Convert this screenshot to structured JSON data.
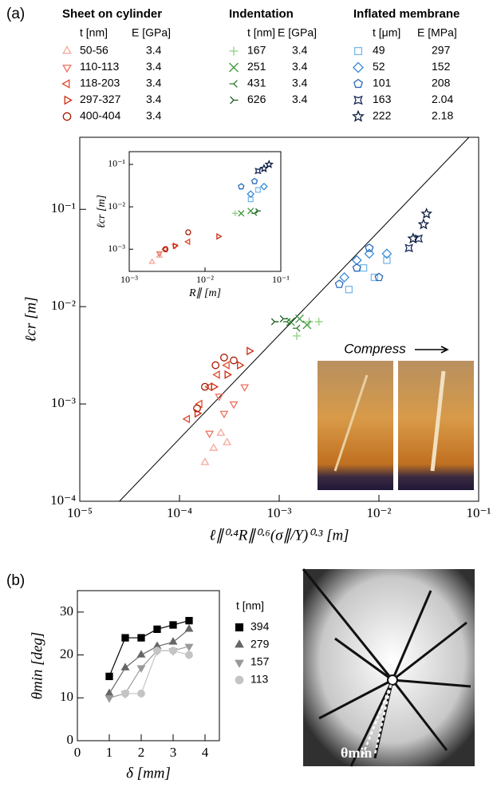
{
  "panel_labels": [
    "(a)",
    "(b)"
  ],
  "photo_a": {
    "caption": "Compress"
  },
  "photo_b": {
    "label": "θmin"
  },
  "chart_data": [
    {
      "type": "scatter",
      "log": true,
      "xlabel": "ℓ∥⁰·⁴R∥⁰·⁶(σ∥/Y)⁰·³ [m]",
      "ylabel": "ℓcr [m]",
      "xlim": [
        1e-05,
        0.1
      ],
      "ylim": [
        0.0001,
        0.55
      ],
      "xticks": [
        {
          "value": 1e-05,
          "label": "10⁻⁵"
        },
        {
          "value": 0.0001,
          "label": "10⁻⁴"
        },
        {
          "value": 0.001,
          "label": "10⁻³"
        },
        {
          "value": 0.01,
          "label": "10⁻²"
        },
        {
          "value": 0.1,
          "label": "10⁻¹"
        }
      ],
      "yticks": [
        {
          "value": 0.0001,
          "label": "10⁻⁴"
        },
        {
          "value": 0.001,
          "label": "10⁻³"
        },
        {
          "value": 0.01,
          "label": "10⁻²"
        },
        {
          "value": 0.1,
          "label": "10⁻¹"
        }
      ],
      "fit_line": {
        "x": [
          2.5e-05,
          0.08
        ],
        "y": [
          0.0001,
          0.55
        ]
      },
      "groups": [
        {
          "title": "Sheet on cylinder",
          "columns": [
            "t [nm]",
            "E [GPa]"
          ],
          "series": [
            {
              "name": "50-56",
              "E": 3.4,
              "color": "#f4a89a",
              "marker": "triangle-up",
              "x": [
                0.00018,
                0.00022,
                0.00026,
                0.0003
              ],
              "values": [
                0.00025,
                0.00035,
                0.0005,
                0.0004
              ]
            },
            {
              "name": "110-113",
              "E": 3.4,
              "color": "#ee7060",
              "marker": "triangle-down",
              "x": [
                0.0002,
                0.00028,
                0.00035,
                0.00045,
                0.00025
              ],
              "values": [
                0.0005,
                0.0008,
                0.001,
                0.0015,
                0.0012
              ]
            },
            {
              "name": "118-203",
              "E": 3.4,
              "color": "#e04a2a",
              "marker": "triangle-left",
              "x": [
                0.00012,
                0.00016,
                0.0002,
                0.00024,
                0.0003
              ],
              "values": [
                0.0007,
                0.001,
                0.0015,
                0.002,
                0.0025
              ]
            },
            {
              "name": "297-327",
              "E": 3.4,
              "color": "#cc2a10",
              "marker": "triangle-right",
              "x": [
                0.00015,
                0.00022,
                0.0003,
                0.0004,
                0.0005
              ],
              "values": [
                0.0008,
                0.0015,
                0.002,
                0.0025,
                0.0035
              ]
            },
            {
              "name": "400-404",
              "E": 3.4,
              "color": "#a81800",
              "marker": "circle",
              "x": [
                0.00018,
                0.00023,
                0.00028,
                0.00035,
                0.00015
              ],
              "values": [
                0.0015,
                0.0025,
                0.003,
                0.0028,
                0.0009
              ]
            }
          ]
        },
        {
          "title": "Indentation",
          "columns": [
            "t [nm]",
            "E [GPa]"
          ],
          "series": [
            {
              "name": "167",
              "E": 3.4,
              "color": "#8fd080",
              "marker": "plus",
              "x": [
                0.0015,
                0.002,
                0.0025
              ],
              "values": [
                0.005,
                0.007,
                0.007
              ]
            },
            {
              "name": "251",
              "E": 3.4,
              "color": "#3a9a3a",
              "marker": "cross",
              "x": [
                0.0013,
                0.0016,
                0.0019
              ],
              "values": [
                0.007,
                0.0075,
                0.0065
              ]
            },
            {
              "name": "431",
              "E": 3.4,
              "color": "#2a7a2a",
              "marker": "tri-right",
              "x": [
                0.0012,
                0.0015
              ],
              "values": [
                0.007,
                0.006
              ]
            },
            {
              "name": "626",
              "E": 3.4,
              "color": "#1a5a1a",
              "marker": "tri-left",
              "x": [
                0.0009,
                0.0011
              ],
              "values": [
                0.007,
                0.0075
              ]
            }
          ]
        },
        {
          "title": "Inflated membrane",
          "columns": [
            "t [μm]",
            "E [MPa]"
          ],
          "series": [
            {
              "name": "49",
              "E": 297,
              "color": "#7ab8e8",
              "marker": "square",
              "x": [
                0.005,
                0.007,
                0.009,
                0.012
              ],
              "values": [
                0.015,
                0.025,
                0.02,
                0.03
              ]
            },
            {
              "name": "52",
              "E": 152,
              "color": "#3a8ad8",
              "marker": "diamond",
              "x": [
                0.0045,
                0.006,
                0.008,
                0.012
              ],
              "values": [
                0.02,
                0.03,
                0.035,
                0.035
              ]
            },
            {
              "name": "101",
              "E": 208,
              "color": "#2a6ab8",
              "marker": "pentagon",
              "x": [
                0.004,
                0.006,
                0.008,
                0.01
              ],
              "values": [
                0.017,
                0.025,
                0.04,
                0.02
              ]
            },
            {
              "name": "163",
              "E": 2.04,
              "color": "#1a2a5a",
              "marker": "star4",
              "x": [
                0.02,
                0.025
              ],
              "values": [
                0.04,
                0.05
              ]
            },
            {
              "name": "222",
              "E": 2.18,
              "color": "#0a1a40",
              "marker": "star5",
              "x": [
                0.022,
                0.028,
                0.03
              ],
              "values": [
                0.05,
                0.07,
                0.09
              ]
            }
          ]
        }
      ]
    },
    {
      "type": "scatter",
      "log": true,
      "xlabel": "R∥ [m]",
      "ylabel": "ℓcr [m]",
      "xlim": [
        0.001,
        0.1
      ],
      "ylim": [
        0.0003,
        0.2
      ],
      "xticks": [
        {
          "value": 0.001,
          "label": "10⁻³"
        },
        {
          "value": 0.01,
          "label": "10⁻²"
        },
        {
          "value": 0.1,
          "label": "10⁻¹"
        }
      ],
      "yticks": [
        {
          "value": 0.001,
          "label": "10⁻³"
        },
        {
          "value": 0.01,
          "label": "10⁻²"
        },
        {
          "value": 0.1,
          "label": "10⁻¹"
        }
      ],
      "series": [
        {
          "color": "#f4a89a",
          "marker": "triangle-up",
          "x": [
            0.002,
            0.0025
          ],
          "values": [
            0.0005,
            0.0007
          ]
        },
        {
          "color": "#ee7060",
          "marker": "triangle-down",
          "x": [
            0.0025,
            0.004
          ],
          "values": [
            0.0008,
            0.0012
          ]
        },
        {
          "color": "#e04a2a",
          "marker": "triangle-left",
          "x": [
            0.003,
            0.006
          ],
          "values": [
            0.001,
            0.0015
          ]
        },
        {
          "color": "#cc2a10",
          "marker": "triangle-right",
          "x": [
            0.004,
            0.015
          ],
          "values": [
            0.0012,
            0.002
          ]
        },
        {
          "color": "#a81800",
          "marker": "circle",
          "x": [
            0.003,
            0.006
          ],
          "values": [
            0.001,
            0.0025
          ]
        },
        {
          "color": "#8fd080",
          "marker": "plus",
          "x": [
            0.025
          ],
          "values": [
            0.007
          ]
        },
        {
          "color": "#3a9a3a",
          "marker": "cross",
          "x": [
            0.03,
            0.04
          ],
          "values": [
            0.007,
            0.008
          ]
        },
        {
          "color": "#2a7a2a",
          "marker": "tri-right",
          "x": [
            0.045
          ],
          "values": [
            0.007
          ]
        },
        {
          "color": "#1a5a1a",
          "marker": "tri-left",
          "x": [
            0.05
          ],
          "values": [
            0.008
          ]
        },
        {
          "color": "#7ab8e8",
          "marker": "square",
          "x": [
            0.04,
            0.05
          ],
          "values": [
            0.015,
            0.025
          ]
        },
        {
          "color": "#3a8ad8",
          "marker": "diamond",
          "x": [
            0.04,
            0.06
          ],
          "values": [
            0.02,
            0.03
          ]
        },
        {
          "color": "#2a6ab8",
          "marker": "pentagon",
          "x": [
            0.03,
            0.045
          ],
          "values": [
            0.03,
            0.04
          ]
        },
        {
          "color": "#1a2a5a",
          "marker": "star4",
          "x": [
            0.05
          ],
          "values": [
            0.07
          ]
        },
        {
          "color": "#0a1a40",
          "marker": "star5",
          "x": [
            0.06,
            0.07
          ],
          "values": [
            0.08,
            0.1
          ]
        }
      ]
    },
    {
      "type": "line",
      "filled": true,
      "xlabel": "δ [mm]",
      "ylabel": "θmin [deg]",
      "xlim": [
        0,
        4.45
      ],
      "ylim": [
        0,
        35
      ],
      "xticks": [
        0,
        1,
        2,
        3,
        4
      ],
      "yticks": [
        0,
        10,
        20,
        30
      ],
      "legend_title": "t [nm]",
      "x": [
        1,
        1.5,
        2,
        2.5,
        3,
        3.5
      ],
      "series": [
        {
          "name": "394",
          "color": "#000000",
          "marker": "square",
          "values": [
            15,
            24,
            24,
            26,
            27,
            28
          ]
        },
        {
          "name": "279",
          "color": "#666666",
          "marker": "triangle-up",
          "values": [
            11,
            17,
            20,
            22,
            23,
            26
          ]
        },
        {
          "name": "157",
          "color": "#999999",
          "marker": "triangle-down",
          "values": [
            10,
            11,
            17,
            21,
            21,
            22
          ]
        },
        {
          "name": "113",
          "color": "#c4c4c4",
          "marker": "circle",
          "values": [
            null,
            11,
            11,
            21,
            21,
            20
          ]
        }
      ]
    }
  ]
}
